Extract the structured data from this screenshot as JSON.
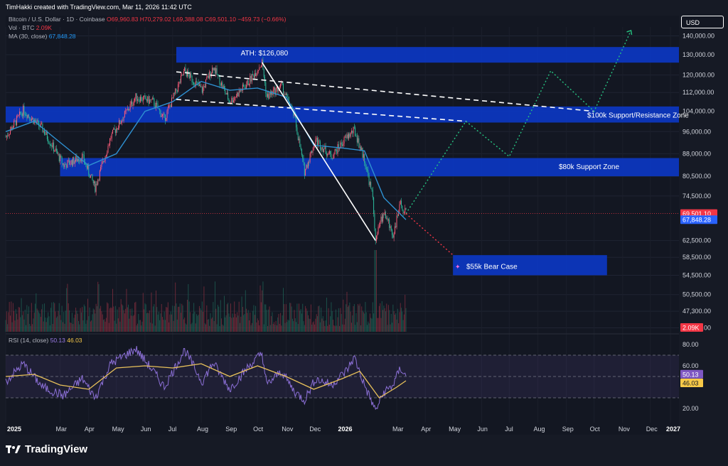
{
  "header": {
    "created": "TimHakki created with TradingView.com, Mar 11, 2026 11:42 UTC"
  },
  "legend": {
    "symbol": "Bitcoin / U.S. Dollar · 1D · Coinbase",
    "open": "O69,960.83",
    "high": "H70,279.02",
    "low": "L69,388.08",
    "close": "C69,501.10",
    "change": "−459.73 (−0.66%)",
    "vol_label": "Vol · BTC",
    "vol_value": "2.09K",
    "ma_label": "MA (30, close)",
    "ma_value": "67,848.28",
    "rsi_label": "RSI (14, close)",
    "rsi_value": "50.13",
    "rsi_ma_value": "46.03"
  },
  "currency_button": "USD",
  "footer": {
    "brand": "TradingView"
  },
  "colors": {
    "background": "#161a25",
    "zone_blue": "#0c37c2",
    "ma_line": "#2e90d1",
    "up": "#ff5d7a",
    "down": "#2dbd9d",
    "forecast_green": "#26c281",
    "forecast_red": "#f23645",
    "rsi_line": "#8b6fd6",
    "rsi_ma": "#e8c15a"
  },
  "chart_data": {
    "type": "candlestick",
    "x_ticks": [
      "2025",
      "Mar",
      "Apr",
      "May",
      "Jun",
      "Jul",
      "Aug",
      "Sep",
      "Oct",
      "Nov",
      "Dec",
      "2026",
      "Mar",
      "Apr",
      "May",
      "Jun",
      "Jul",
      "Aug",
      "Sep",
      "Oct",
      "Nov",
      "Dec",
      "2027"
    ],
    "y_scale": "log",
    "y_ticks": [
      "140,000.00",
      "130,000.00",
      "120,000.00",
      "112,000.00",
      "104,000.00",
      "96,000.00",
      "88,000.00",
      "80,500.00",
      "74,500.00",
      "62,500.00",
      "58,500.00",
      "54,500.00",
      "50,500.00",
      "47,300.00",
      "44,300.00"
    ],
    "price_path": [
      [
        "2025-01-01",
        94000
      ],
      [
        "2025-01-20",
        104500
      ],
      [
        "2025-02-10",
        97000
      ],
      [
        "2025-03-05",
        84000
      ],
      [
        "2025-03-25",
        87000
      ],
      [
        "2025-04-08",
        77000
      ],
      [
        "2025-04-25",
        94000
      ],
      [
        "2025-05-22",
        110000
      ],
      [
        "2025-06-10",
        108000
      ],
      [
        "2025-06-22",
        101000
      ],
      [
        "2025-07-14",
        122000
      ],
      [
        "2025-08-02",
        113000
      ],
      [
        "2025-08-14",
        124000
      ],
      [
        "2025-09-01",
        108000
      ],
      [
        "2025-09-20",
        116000
      ],
      [
        "2025-10-06",
        126080
      ],
      [
        "2025-10-11",
        110000
      ],
      [
        "2025-10-27",
        115000
      ],
      [
        "2025-11-10",
        102000
      ],
      [
        "2025-11-21",
        82000
      ],
      [
        "2025-12-03",
        93000
      ],
      [
        "2025-12-20",
        87000
      ],
      [
        "2026-01-06",
        94000
      ],
      [
        "2026-01-14",
        96500
      ],
      [
        "2026-01-25",
        86000
      ],
      [
        "2026-02-03",
        74000
      ],
      [
        "2026-02-06",
        63000
      ],
      [
        "2026-02-15",
        70000
      ],
      [
        "2026-02-25",
        64000
      ],
      [
        "2026-03-05",
        72000
      ],
      [
        "2026-03-11",
        69501.1
      ]
    ],
    "ma_path": [
      [
        "2025-01-01",
        96000
      ],
      [
        "2025-02-01",
        100000
      ],
      [
        "2025-03-01",
        92000
      ],
      [
        "2025-04-01",
        84000
      ],
      [
        "2025-05-01",
        88000
      ],
      [
        "2025-06-01",
        104000
      ],
      [
        "2025-07-01",
        108000
      ],
      [
        "2025-08-01",
        117000
      ],
      [
        "2025-09-01",
        113000
      ],
      [
        "2025-10-01",
        114000
      ],
      [
        "2025-11-01",
        110000
      ],
      [
        "2025-12-01",
        91000
      ],
      [
        "2026-01-01",
        90000
      ],
      [
        "2026-01-25",
        89000
      ],
      [
        "2026-02-15",
        74000
      ],
      [
        "2026-03-11",
        67848.28
      ]
    ],
    "volume_peak_date": "2026-02-06",
    "volume_last": "2.09K",
    "zones": [
      {
        "label": "ATH: $126,080",
        "low": 126000,
        "high": 134000,
        "from": "2025-07-05",
        "to": "2027-01-01"
      },
      {
        "label": "$100k Support/Resistance Zone",
        "low": 99500,
        "high": 106000,
        "from": "2025-01-01",
        "to": "2027-01-01"
      },
      {
        "label": "$80k Support Zone",
        "low": 80500,
        "high": 86500,
        "from": "2025-03-01",
        "to": "2027-01-01"
      },
      {
        "label": "$55k Bear Case",
        "low": 54500,
        "high": 59000,
        "from": "2026-05-01",
        "to": "2026-10-15"
      }
    ],
    "trendlines": [
      {
        "style": "dashed",
        "points": [
          [
            "2025-07-05",
            121500
          ],
          [
            "2026-10-01",
            104000
          ]
        ]
      },
      {
        "style": "dashed",
        "points": [
          [
            "2025-07-05",
            109000
          ],
          [
            "2026-05-15",
            100000
          ]
        ]
      },
      {
        "style": "solid",
        "points": [
          [
            "2025-10-06",
            126080
          ],
          [
            "2026-02-06",
            62500
          ]
        ]
      }
    ],
    "forecast_bull": [
      [
        "2026-03-11",
        69501
      ],
      [
        "2026-05-15",
        100000
      ],
      [
        "2026-07-01",
        87000
      ],
      [
        "2026-08-15",
        122000
      ],
      [
        "2026-10-01",
        104000
      ],
      [
        "2026-11-10",
        143000
      ]
    ],
    "forecast_bear": [
      [
        "2026-03-11",
        69501
      ],
      [
        "2026-05-01",
        59000
      ]
    ],
    "price_labels": {
      "close": "69,501.10",
      "ma": "67,848.28",
      "volume": "2.09K"
    },
    "rsi": {
      "y_ticks": [
        "80.00",
        "60.00",
        "20.00"
      ],
      "band": [
        30,
        70
      ],
      "path": [
        [
          "2025-01-01",
          45
        ],
        [
          "2025-01-20",
          62
        ],
        [
          "2025-02-10",
          40
        ],
        [
          "2025-03-05",
          32
        ],
        [
          "2025-03-25",
          48
        ],
        [
          "2025-04-08",
          30
        ],
        [
          "2025-04-25",
          62
        ],
        [
          "2025-05-22",
          76
        ],
        [
          "2025-06-10",
          55
        ],
        [
          "2025-06-22",
          40
        ],
        [
          "2025-07-14",
          75
        ],
        [
          "2025-08-02",
          45
        ],
        [
          "2025-08-14",
          63
        ],
        [
          "2025-09-01",
          38
        ],
        [
          "2025-09-20",
          58
        ],
        [
          "2025-10-06",
          72
        ],
        [
          "2025-10-11",
          42
        ],
        [
          "2025-10-27",
          55
        ],
        [
          "2025-11-10",
          36
        ],
        [
          "2025-11-21",
          28
        ],
        [
          "2025-12-03",
          48
        ],
        [
          "2025-12-20",
          42
        ],
        [
          "2026-01-06",
          56
        ],
        [
          "2026-01-14",
          68
        ],
        [
          "2026-01-25",
          42
        ],
        [
          "2026-02-06",
          18
        ],
        [
          "2026-02-15",
          35
        ],
        [
          "2026-02-25",
          42
        ],
        [
          "2026-03-05",
          58
        ],
        [
          "2026-03-11",
          50.13
        ]
      ],
      "ma_path": [
        [
          "2025-01-01",
          50
        ],
        [
          "2025-02-01",
          52
        ],
        [
          "2025-03-01",
          42
        ],
        [
          "2025-04-01",
          38
        ],
        [
          "2025-05-01",
          58
        ],
        [
          "2025-06-01",
          60
        ],
        [
          "2025-07-01",
          58
        ],
        [
          "2025-08-01",
          62
        ],
        [
          "2025-09-01",
          50
        ],
        [
          "2025-10-01",
          60
        ],
        [
          "2025-11-01",
          50
        ],
        [
          "2025-12-01",
          38
        ],
        [
          "2026-01-01",
          48
        ],
        [
          "2026-01-20",
          55
        ],
        [
          "2026-02-10",
          30
        ],
        [
          "2026-03-01",
          40
        ],
        [
          "2026-03-11",
          46.03
        ]
      ]
    }
  }
}
